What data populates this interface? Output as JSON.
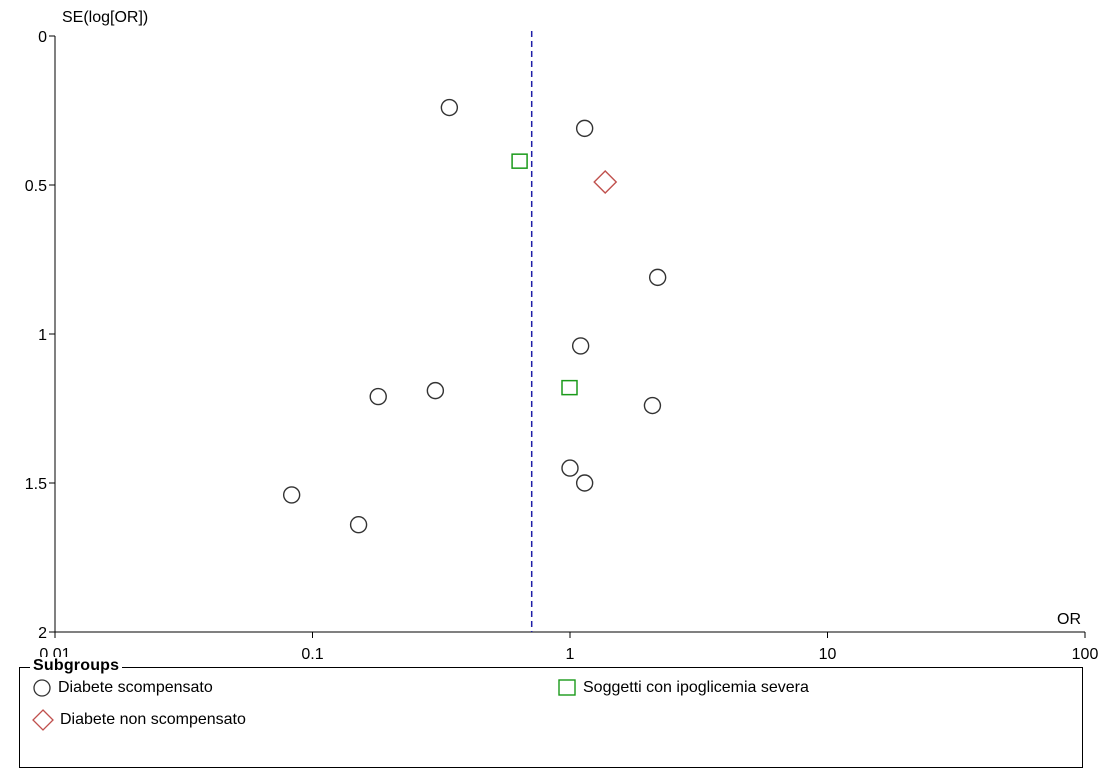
{
  "chart_data": {
    "type": "scatter",
    "title": "",
    "xlabel": "OR",
    "ylabel": "SE(log[OR])",
    "x_scale": "log",
    "xlim": [
      0.01,
      100
    ],
    "ylim": [
      0,
      2
    ],
    "y_inverted": true,
    "x_ticks": [
      {
        "value": 0.01,
        "label": "0.01"
      },
      {
        "value": 0.1,
        "label": "0.1"
      },
      {
        "value": 1,
        "label": "1"
      },
      {
        "value": 10,
        "label": "10"
      },
      {
        "value": 100,
        "label": "100"
      }
    ],
    "y_ticks": [
      {
        "value": 0,
        "label": "0"
      },
      {
        "value": 0.5,
        "label": "0.5"
      },
      {
        "value": 1,
        "label": "1"
      },
      {
        "value": 1.5,
        "label": "1.5"
      },
      {
        "value": 2,
        "label": "2"
      }
    ],
    "pooled_estimate_line": {
      "x": 0.71,
      "style": "dashed",
      "color": "#1f1fa8"
    },
    "series": [
      {
        "name": "Diabete scompensato",
        "marker": "circle",
        "color": "#333333",
        "points": [
          {
            "x": 0.34,
            "y": 0.24
          },
          {
            "x": 1.14,
            "y": 0.31
          },
          {
            "x": 2.19,
            "y": 0.81
          },
          {
            "x": 1.1,
            "y": 1.04
          },
          {
            "x": 0.3,
            "y": 1.19
          },
          {
            "x": 0.18,
            "y": 1.21
          },
          {
            "x": 2.09,
            "y": 1.24
          },
          {
            "x": 1.0,
            "y": 1.45
          },
          {
            "x": 1.14,
            "y": 1.5
          },
          {
            "x": 0.083,
            "y": 1.54
          },
          {
            "x": 0.151,
            "y": 1.64
          }
        ]
      },
      {
        "name": "Soggetti con ipoglicemia severa",
        "marker": "square",
        "color": "#1a9a1a",
        "points": [
          {
            "x": 0.64,
            "y": 0.42
          },
          {
            "x": 1.0,
            "y": 1.18
          }
        ]
      },
      {
        "name": "Diabete non scompensato",
        "marker": "diamond",
        "color": "#c0504d",
        "points": [
          {
            "x": 1.37,
            "y": 0.49
          }
        ]
      }
    ],
    "legend": {
      "title": "Subgroups",
      "placement": "bottom",
      "entries": [
        "Diabete scompensato",
        "Soggetti con ipoglicemia severa",
        "Diabete non scompensato"
      ]
    }
  }
}
